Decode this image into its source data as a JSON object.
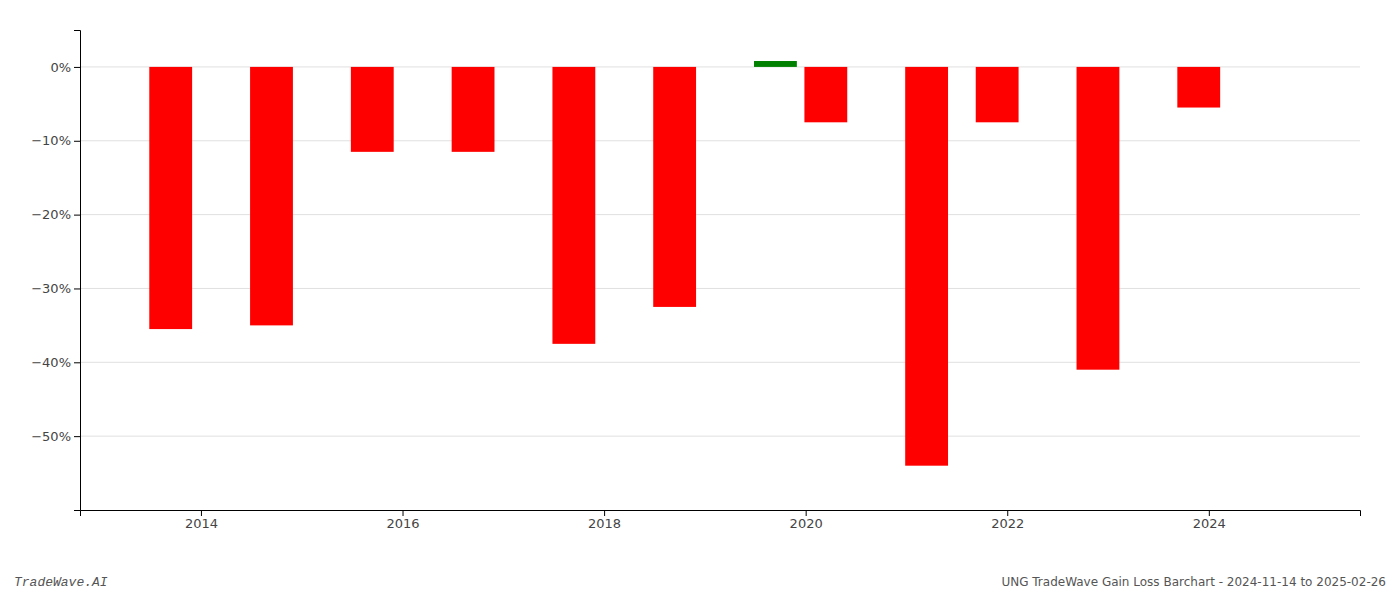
{
  "chart_data": {
    "type": "bar",
    "title": "UNG TradeWave Gain Loss Barchart - 2024-11-14 to 2025-02-26",
    "annotations": [
      "TradeWave.AI"
    ],
    "x": [
      2013.7,
      2014.7,
      2015.7,
      2016.7,
      2017.7,
      2018.7,
      2019.7,
      2020.2,
      2021.2,
      2021.9,
      2022.9,
      2023.9
    ],
    "values": [
      -35.5,
      -35.0,
      -11.5,
      -11.5,
      -37.5,
      -32.5,
      0.8,
      -7.5,
      -54.0,
      -7.5,
      -41.0,
      -5.5
    ],
    "colors": [
      "#ff0000",
      "#ff0000",
      "#ff0000",
      "#ff0000",
      "#ff0000",
      "#ff0000",
      "#008000",
      "#ff0000",
      "#ff0000",
      "#ff0000",
      "#ff0000",
      "#ff0000"
    ],
    "xlim": [
      2012.8,
      2025.5
    ],
    "xticks": [
      2014,
      2016,
      2018,
      2020,
      2022,
      2024
    ],
    "ylim": [
      -60,
      5
    ],
    "yticks": [
      {
        "value": 0,
        "label": "0%"
      },
      {
        "value": -10,
        "label": "−10%"
      },
      {
        "value": -20,
        "label": "−20%"
      },
      {
        "value": -30,
        "label": "−30%"
      },
      {
        "value": -40,
        "label": "−40%"
      },
      {
        "value": -50,
        "label": "−50%"
      }
    ],
    "grid": true
  }
}
